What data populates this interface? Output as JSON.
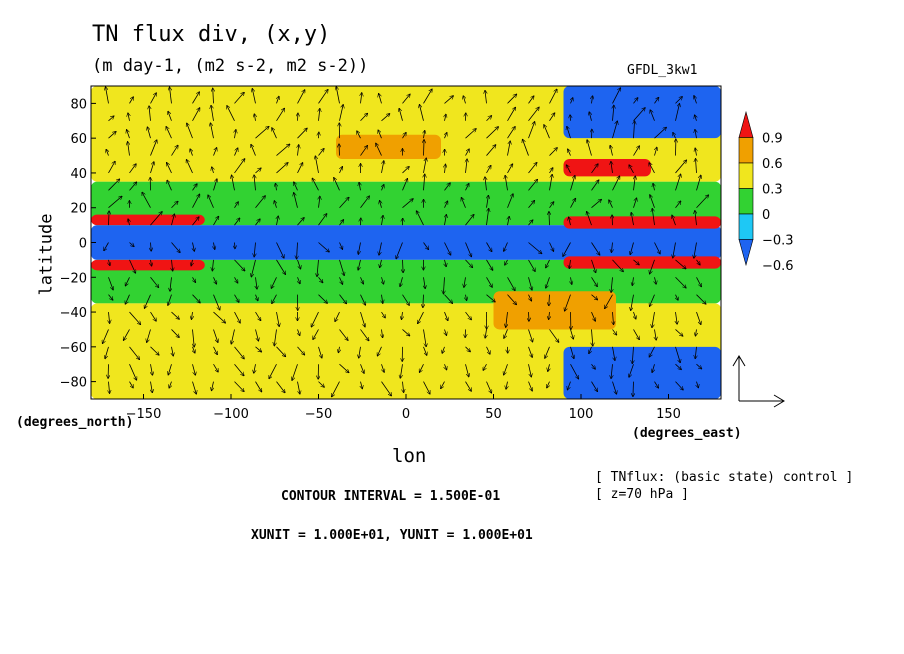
{
  "header": {
    "title": "TN flux div, (x,y)",
    "subtitle": "(m day-1, (m2 s-2, m2 s-2))",
    "dataset": "GFDL_3kw1"
  },
  "axes": {
    "ylabel": "latitude",
    "xlabel": "lon",
    "y_unit_note": "(degrees_north)",
    "x_unit_note": "(degrees_east)"
  },
  "info": {
    "line1": "[ TNflux: (basic state) control ]",
    "line2": "[ z=70 hPa ]",
    "contour_interval": "CONTOUR INTERVAL = 1.500E-01",
    "units": "XUNIT = 1.000E+01, YUNIT = 1.000E+01"
  },
  "chart_data": {
    "type": "heatmap",
    "title": "TN flux div, (x,y)",
    "subtitle": "(m day-1, (m2 s-2, m2 s-2))",
    "xlabel": "lon",
    "ylabel": "latitude",
    "xlim": [
      -180,
      180
    ],
    "ylim": [
      -90,
      90
    ],
    "x_ticks": [
      -150,
      -100,
      -50,
      0,
      50,
      100,
      150
    ],
    "y_ticks": [
      80,
      60,
      40,
      20,
      0,
      -20,
      -40,
      -60,
      -80
    ],
    "x_tick_labels": [
      "−150",
      "−100",
      "−50",
      "0",
      "50",
      "100",
      "150"
    ],
    "y_tick_labels": [
      "80",
      "60",
      "40",
      "20",
      "0",
      "−20",
      "−40",
      "−60",
      "−80"
    ],
    "colorbar": {
      "levels": [
        -0.6,
        -0.3,
        0,
        0.3,
        0.6,
        0.9
      ],
      "labels": [
        "−0.6",
        "−0.3",
        "0",
        "0.3",
        "0.6",
        "0.9"
      ],
      "colors": [
        "#1e64f0",
        "#1ec8f5",
        "#32d232",
        "#f0e61e",
        "#f0a000",
        "#f01414"
      ]
    },
    "contour_interval": 0.15,
    "vector_units": {
      "xunit": 10,
      "yunit": 10
    },
    "regions": [
      {
        "value": -0.7,
        "lon": [
          -180,
          180
        ],
        "lat": [
          -10,
          10
        ]
      },
      {
        "value": -0.2,
        "lon": [
          -180,
          180
        ],
        "lat": [
          10,
          35
        ]
      },
      {
        "value": -0.2,
        "lon": [
          -180,
          180
        ],
        "lat": [
          -35,
          -10
        ]
      },
      {
        "value": 0.1,
        "lon": [
          -180,
          180
        ],
        "lat": [
          35,
          90
        ]
      },
      {
        "value": 0.1,
        "lon": [
          -180,
          180
        ],
        "lat": [
          -90,
          -35
        ]
      },
      {
        "value": 1.0,
        "lon": [
          -180,
          -115
        ],
        "lat": [
          10,
          16
        ]
      },
      {
        "value": 1.0,
        "lon": [
          -180,
          -115
        ],
        "lat": [
          -16,
          -10
        ]
      },
      {
        "value": 1.0,
        "lon": [
          90,
          180
        ],
        "lat": [
          8,
          15
        ]
      },
      {
        "value": 1.0,
        "lon": [
          90,
          180
        ],
        "lat": [
          -15,
          -8
        ]
      },
      {
        "value": 0.4,
        "lon": [
          50,
          120
        ],
        "lat": [
          -50,
          -28
        ]
      },
      {
        "value": 0.4,
        "lon": [
          -40,
          20
        ],
        "lat": [
          48,
          62
        ]
      },
      {
        "value": 1.0,
        "lon": [
          90,
          140
        ],
        "lat": [
          38,
          48
        ]
      },
      {
        "value": -0.7,
        "lon": [
          90,
          180
        ],
        "lat": [
          60,
          90
        ]
      },
      {
        "value": -0.7,
        "lon": [
          90,
          180
        ],
        "lat": [
          -90,
          -60
        ]
      }
    ]
  }
}
